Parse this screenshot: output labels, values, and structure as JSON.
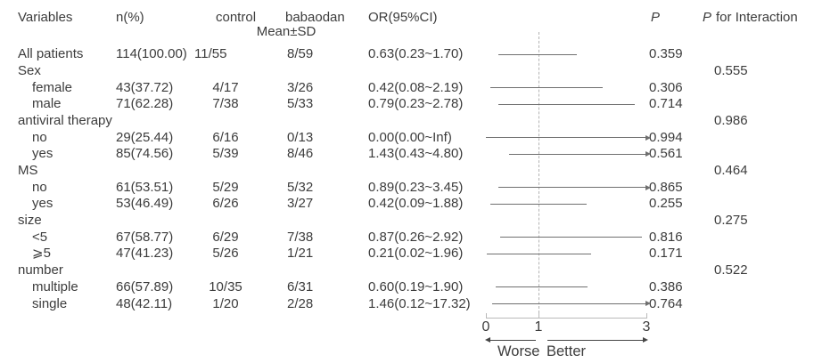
{
  "header": {
    "variables": "Variables",
    "n_pct": "n(%)",
    "control": "control",
    "babaodan": "babaodan",
    "mean_sd": "Mean±SD",
    "or_ci": "OR(95%CI)",
    "p": "P",
    "p_interaction_suffix": "for Interaction"
  },
  "chart_data": {
    "type": "forest",
    "title": "",
    "xlabel": "",
    "x_axis": {
      "range": [
        0,
        3
      ],
      "ref_line": 1,
      "tick_labels": [
        "0",
        "1",
        "3"
      ],
      "direction_labels": {
        "left": "Worse",
        "right": "Better"
      }
    },
    "rows": [
      {
        "kind": "data",
        "label": "All patients",
        "indent": false,
        "n": "114(100.00)",
        "control": "11/55",
        "babaodan": "8/59",
        "or": "0.63(0.23~1.70)",
        "lo": 0.23,
        "hi": 1.7,
        "p": "0.359"
      },
      {
        "kind": "group",
        "label": "Sex",
        "p_interaction": "0.555"
      },
      {
        "kind": "data",
        "label": "female",
        "indent": true,
        "n": "43(37.72)",
        "control": "4/17",
        "babaodan": "3/26",
        "or": "0.42(0.08~2.19)",
        "lo": 0.08,
        "hi": 2.19,
        "p": "0.306"
      },
      {
        "kind": "data",
        "label": "male",
        "indent": true,
        "n": "71(62.28)",
        "control": "7/38",
        "babaodan": "5/33",
        "or": "0.79(0.23~2.78)",
        "lo": 0.23,
        "hi": 2.78,
        "p": "0.714"
      },
      {
        "kind": "group",
        "label": "antiviral therapy",
        "p_interaction": "0.986"
      },
      {
        "kind": "data",
        "label": "no",
        "indent": true,
        "n": "29(25.44)",
        "control": "6/16",
        "babaodan": "0/13",
        "or": "0.00(0.00~Inf)",
        "lo": 0.0,
        "hi": "Inf",
        "p": "0.994"
      },
      {
        "kind": "data",
        "label": "yes",
        "indent": true,
        "n": "85(74.56)",
        "control": "5/39",
        "babaodan": "8/46",
        "or": "1.43(0.43~4.80)",
        "lo": 0.43,
        "hi": 4.8,
        "p": "0.561"
      },
      {
        "kind": "group",
        "label": "MS",
        "p_interaction": "0.464"
      },
      {
        "kind": "data",
        "label": "no",
        "indent": true,
        "n": "61(53.51)",
        "control": "5/29",
        "babaodan": "5/32",
        "or": "0.89(0.23~3.45)",
        "lo": 0.23,
        "hi": 3.45,
        "p": "0.865"
      },
      {
        "kind": "data",
        "label": "yes",
        "indent": true,
        "n": "53(46.49)",
        "control": "6/26",
        "babaodan": "3/27",
        "or": "0.42(0.09~1.88)",
        "lo": 0.09,
        "hi": 1.88,
        "p": "0.255"
      },
      {
        "kind": "group",
        "label": "size",
        "p_interaction": "0.275"
      },
      {
        "kind": "data",
        "label": "<5",
        "indent": true,
        "n": "67(58.77)",
        "control": "6/29",
        "babaodan": "7/38",
        "or": "0.87(0.26~2.92)",
        "lo": 0.26,
        "hi": 2.92,
        "p": "0.816"
      },
      {
        "kind": "data",
        "label": "⩾5",
        "indent": true,
        "n": "47(41.23)",
        "control": "5/26",
        "babaodan": "1/21",
        "or": "0.21(0.02~1.96)",
        "lo": 0.02,
        "hi": 1.96,
        "p": "0.171"
      },
      {
        "kind": "group",
        "label": "number",
        "p_interaction": "0.522"
      },
      {
        "kind": "data",
        "label": "multiple",
        "indent": true,
        "n": "66(57.89)",
        "control": "10/35",
        "babaodan": "6/31",
        "or": "0.60(0.19~1.90)",
        "lo": 0.19,
        "hi": 1.9,
        "p": "0.386"
      },
      {
        "kind": "data",
        "label": "single",
        "indent": true,
        "n": "48(42.11)",
        "control": "1/20",
        "babaodan": "2/28",
        "or": "1.46(0.12~17.32)",
        "lo": 0.12,
        "hi": 17.32,
        "p": "0.764"
      }
    ]
  }
}
